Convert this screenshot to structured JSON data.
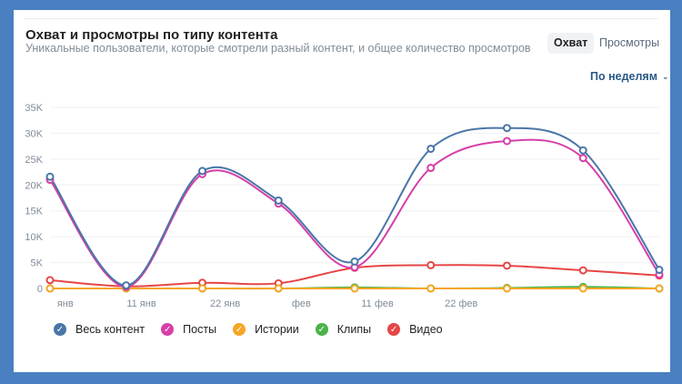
{
  "header": {
    "title": "Охват и просмотры по типу контента",
    "subtitle": "Уникальные пользователи, которые смотрели разный контент, и общее количество просмотров"
  },
  "toggle": {
    "reach_label": "Охват",
    "views_label": "Просмотры",
    "active": "reach"
  },
  "period": {
    "label": "По неделям",
    "chevron_icon": "chevron-down-icon"
  },
  "chart_data": {
    "type": "line",
    "smooth": true,
    "ylim": [
      0,
      35000
    ],
    "y_ticks": [
      0,
      5000,
      10000,
      15000,
      20000,
      25000,
      30000,
      35000
    ],
    "y_tick_labels": [
      "0",
      "5K",
      "10K",
      "15K",
      "20K",
      "25K",
      "30K",
      "35K"
    ],
    "grid": true,
    "x_ticks": [
      1,
      11,
      22,
      32,
      42,
      53
    ],
    "x_tick_labels": [
      "янв",
      "11 янв",
      "22 янв",
      "фев",
      "11 фев",
      "22 фев"
    ],
    "x": [
      -1,
      9,
      19,
      29,
      39,
      49,
      59,
      69,
      79
    ],
    "legend_position": "bottom-left",
    "series": [
      {
        "name": "Весь контент",
        "color": "#4a76a8",
        "values": [
          21600,
          600,
          22700,
          17000,
          5200,
          27000,
          31000,
          26700,
          3600
        ]
      },
      {
        "name": "Посты",
        "color": "#d63fa9",
        "values": [
          21000,
          300,
          22100,
          16400,
          4100,
          23300,
          28500,
          25200,
          2700
        ]
      },
      {
        "name": "Истории",
        "color": "#f5a623",
        "values": [
          0,
          0,
          0,
          0,
          0,
          0,
          0,
          0,
          0
        ]
      },
      {
        "name": "Клипы",
        "color": "#4bb34b",
        "values": [
          0,
          0,
          0,
          0,
          200,
          0,
          100,
          300,
          0
        ]
      },
      {
        "name": "Видео",
        "color": "#e64646",
        "values": [
          1600,
          400,
          1100,
          1000,
          4000,
          4500,
          4400,
          3500,
          2500
        ]
      }
    ]
  }
}
